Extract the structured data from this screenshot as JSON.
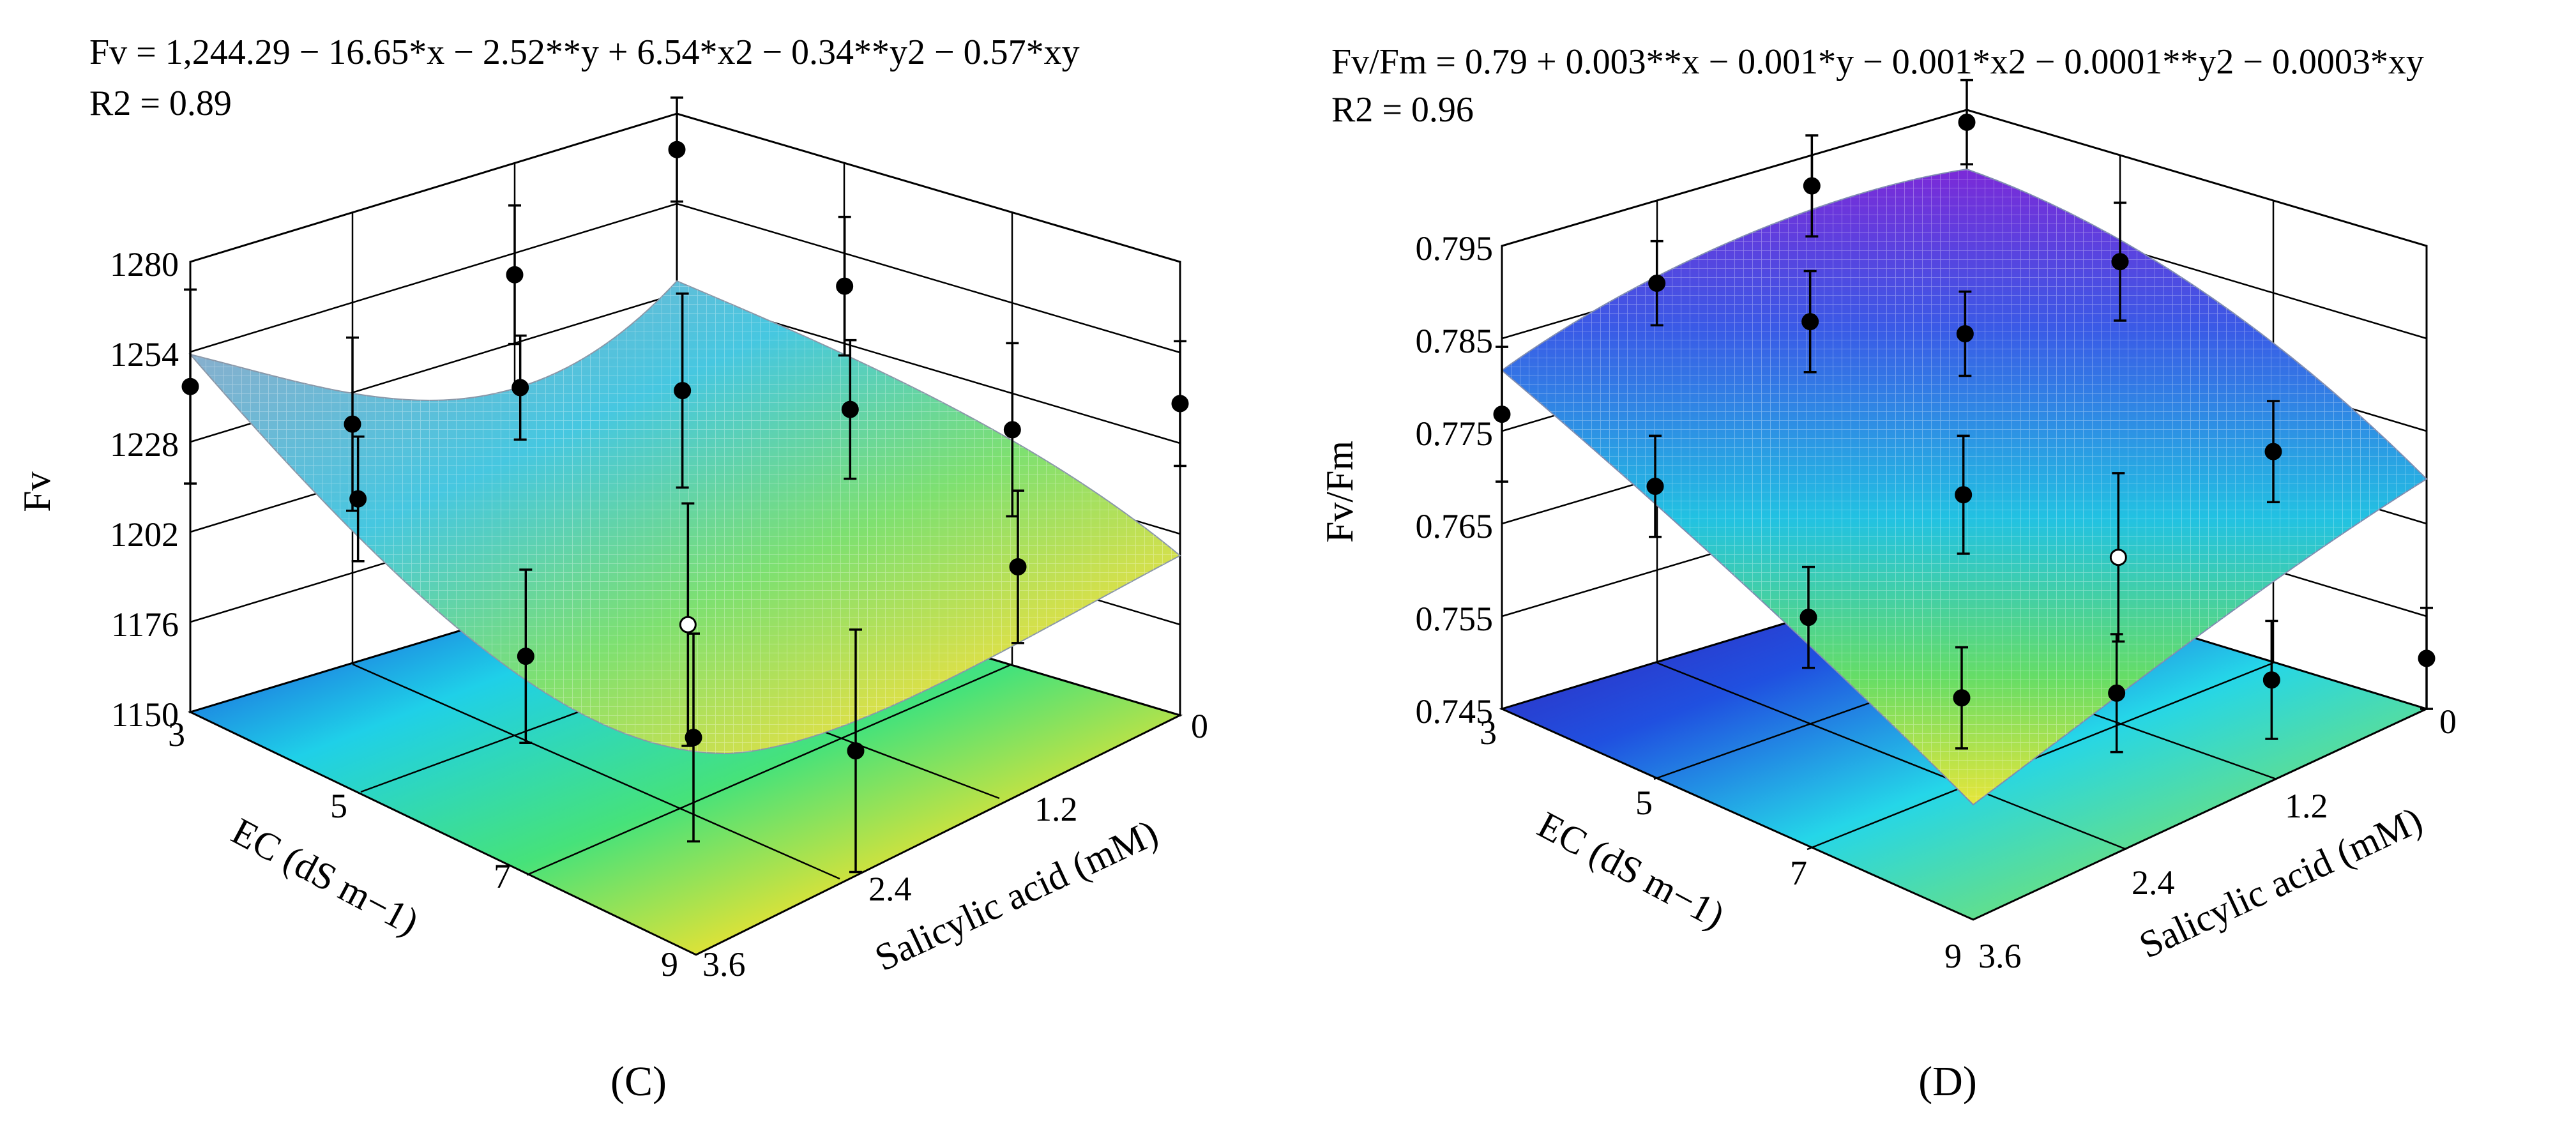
{
  "figures": [
    {
      "panel_label": "(C)",
      "equation": "Fv = 1,244.29 − 16.65*x − 2.52**y + 6.54*x2 − 0.34**y2 − 0.57*xy",
      "r2": "R2 = 0.89"
    },
    {
      "panel_label": "(D)",
      "equation": "Fv/Fm = 0.79 + 0.003**x − 0.001*y − 0.001*x2 − 0.0001**y2 − 0.0003*xy",
      "r2": "R2 = 0.96"
    }
  ],
  "chart_data": [
    {
      "type": "surface3d",
      "panel": "(C)",
      "title": "Fv = 1,244.29 − 16.65*x − 2.52**y + 6.54*x2 − 0.34**y2 − 0.57*xy",
      "subtitle": "R2 = 0.89",
      "zlabel": "Fv",
      "xlabel": "EC (dS m−1)",
      "ylabel": "Salicylic acid (mM)",
      "x_ticks": [
        "3",
        "5",
        "7",
        "9"
      ],
      "y_ticks": [
        "0",
        "1.2",
        "2.4",
        "3.6"
      ],
      "z_ticks": [
        "1150",
        "1176",
        "1202",
        "1228",
        "1254",
        "1280"
      ],
      "zlim": [
        1150,
        1280
      ],
      "surface_grid": {
        "x": [
          3,
          5,
          7,
          9
        ],
        "y": [
          0,
          1.2,
          2.4,
          3.6
        ],
        "z": [
          [
            1255,
            1242,
            1230,
            1218
          ],
          [
            1226,
            1210,
            1196,
            1186
          ],
          [
            1221,
            1200,
            1184,
            1172
          ],
          [
            1248,
            1222,
            1198,
            1175
          ]
        ]
      },
      "observed_points": [
        {
          "ec": 3,
          "sa": 0,
          "value": 1244,
          "err": 28,
          "open": false
        },
        {
          "ec": 3,
          "sa": 1.2,
          "value": 1219,
          "err": 25,
          "open": false
        },
        {
          "ec": 3,
          "sa": 2.4,
          "value": 1248,
          "err": 20,
          "open": false
        },
        {
          "ec": 3,
          "sa": 3.6,
          "value": 1270,
          "err": 15,
          "open": false
        },
        {
          "ec": 5,
          "sa": 0,
          "value": 1226,
          "err": 18,
          "open": false
        },
        {
          "ec": 5,
          "sa": 1.2,
          "value": 1244,
          "err": 15,
          "open": false
        },
        {
          "ec": 5,
          "sa": 2.4,
          "value": 1229,
          "err": 28,
          "open": false
        },
        {
          "ec": 5,
          "sa": 3.6,
          "value": 1245,
          "err": 20,
          "open": false
        },
        {
          "ec": 7,
          "sa": 0,
          "value": 1195,
          "err": 25,
          "open": false
        },
        {
          "ec": 7,
          "sa": 1.2,
          "value": 1190,
          "err": 35,
          "open": true
        },
        {
          "ec": 7,
          "sa": 2.4,
          "value": 1238,
          "err": 20,
          "open": false
        },
        {
          "ec": 7,
          "sa": 3.6,
          "value": 1218,
          "err": 25,
          "open": false
        },
        {
          "ec": 9,
          "sa": 0,
          "value": 1186,
          "err": 30,
          "open": false
        },
        {
          "ec": 9,
          "sa": 1.2,
          "value": 1168,
          "err": 35,
          "open": false
        },
        {
          "ec": 9,
          "sa": 2.4,
          "value": 1207,
          "err": 22,
          "open": false
        },
        {
          "ec": 9,
          "sa": 3.6,
          "value": 1240,
          "err": 18,
          "open": false
        }
      ],
      "contour_floor": true
    },
    {
      "type": "surface3d",
      "panel": "(D)",
      "title": "Fv/Fm = 0.79 + 0.003**x − 0.001*y − 0.001*x2 − 0.0001**y2 − 0.0003*xy",
      "subtitle": "R2 = 0.96",
      "zlabel": "Fv/Fm",
      "xlabel": "EC (dS m−1)",
      "ylabel": "Salicylic acid (mM)",
      "x_ticks": [
        "3",
        "5",
        "7",
        "9"
      ],
      "y_ticks": [
        "0",
        "1.2",
        "2.4",
        "3.6"
      ],
      "z_ticks": [
        "0.745",
        "0.755",
        "0.765",
        "0.775",
        "0.785",
        "0.795"
      ],
      "zlim": [
        0.745,
        0.8
      ],
      "surface_grid": {
        "x": [
          3,
          5,
          7,
          9
        ],
        "y": [
          0,
          1.2,
          2.4,
          3.6
        ],
        "z": [
          [
            0.78,
            0.79,
            0.795,
            0.798
          ],
          [
            0.778,
            0.786,
            0.79,
            0.791
          ],
          [
            0.773,
            0.778,
            0.778,
            0.776
          ],
          [
            0.763,
            0.765,
            0.76,
            0.752
          ]
        ]
      },
      "observed_points": [
        {
          "ec": 3,
          "sa": 0,
          "value": 0.78,
          "err": 0.008,
          "open": false
        },
        {
          "ec": 3,
          "sa": 1.2,
          "value": 0.79,
          "err": 0.005,
          "open": false
        },
        {
          "ec": 3,
          "sa": 2.4,
          "value": 0.796,
          "err": 0.006,
          "open": false
        },
        {
          "ec": 3,
          "sa": 3.6,
          "value": 0.798,
          "err": 0.005,
          "open": false
        },
        {
          "ec": 5,
          "sa": 0,
          "value": 0.777,
          "err": 0.006,
          "open": false
        },
        {
          "ec": 5,
          "sa": 1.2,
          "value": 0.791,
          "err": 0.006,
          "open": false
        },
        {
          "ec": 5,
          "sa": 2.4,
          "value": 0.784,
          "err": 0.005,
          "open": false
        },
        {
          "ec": 5,
          "sa": 3.6,
          "value": 0.787,
          "err": 0.007,
          "open": false
        },
        {
          "ec": 7,
          "sa": 0,
          "value": 0.767,
          "err": 0.006,
          "open": false
        },
        {
          "ec": 7,
          "sa": 1.2,
          "value": 0.776,
          "err": 0.007,
          "open": false
        },
        {
          "ec": 7,
          "sa": 2.4,
          "value": 0.763,
          "err": 0.01,
          "open": true
        },
        {
          "ec": 7,
          "sa": 3.6,
          "value": 0.77,
          "err": 0.006,
          "open": false
        },
        {
          "ec": 9,
          "sa": 0,
          "value": 0.763,
          "err": 0.006,
          "open": false
        },
        {
          "ec": 9,
          "sa": 1.2,
          "value": 0.758,
          "err": 0.007,
          "open": false
        },
        {
          "ec": 9,
          "sa": 2.4,
          "value": 0.754,
          "err": 0.007,
          "open": false
        },
        {
          "ec": 9,
          "sa": 3.6,
          "value": 0.751,
          "err": 0.006,
          "open": false
        }
      ],
      "contour_floor": true
    }
  ]
}
